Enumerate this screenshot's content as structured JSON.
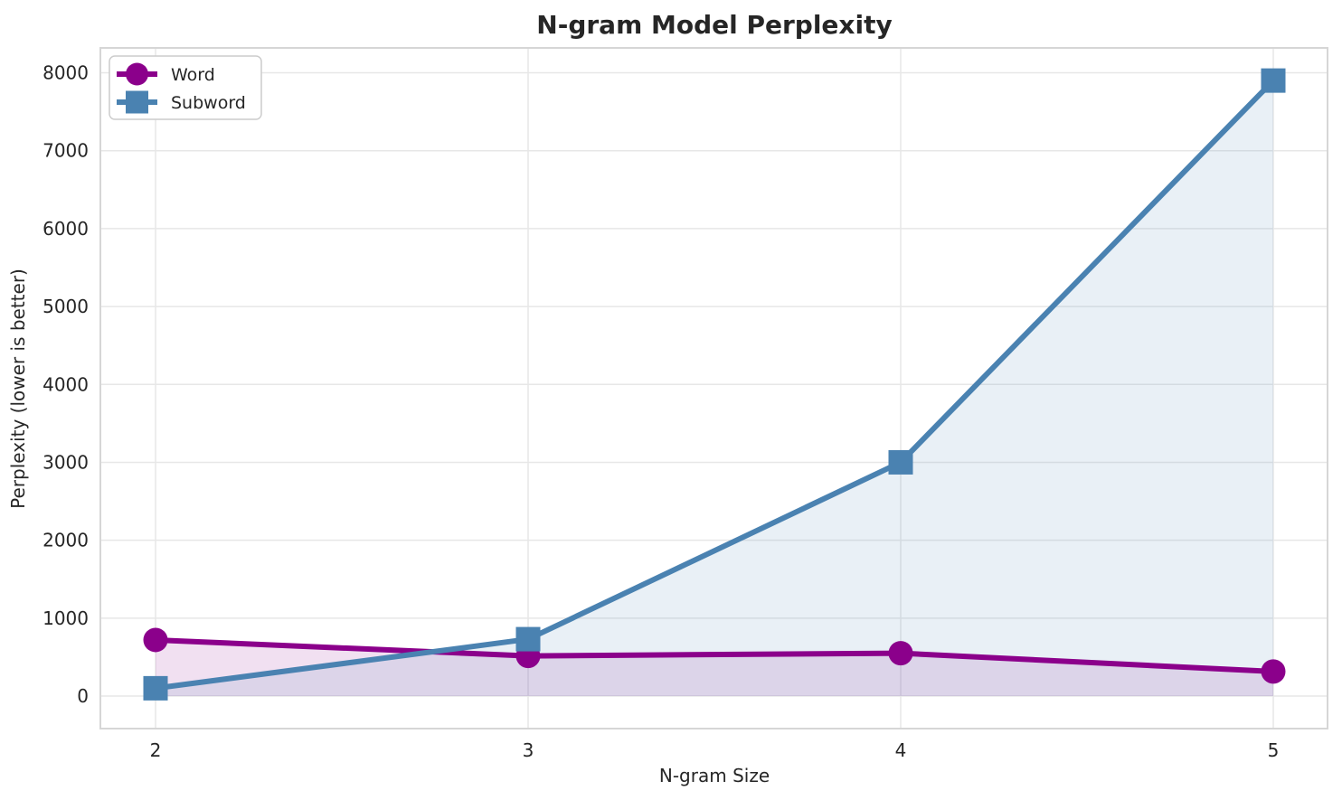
{
  "chart_data": {
    "type": "line",
    "title": "N-gram Model Perplexity",
    "xlabel": "N-gram Size",
    "ylabel": "Perplexity (lower is better)",
    "x": [
      2,
      3,
      4,
      5
    ],
    "xtick_labels": [
      "2",
      "3",
      "4",
      "5"
    ],
    "yticks": [
      0,
      1000,
      2000,
      3000,
      4000,
      5000,
      6000,
      7000,
      8000
    ],
    "ytick_labels": [
      "0",
      "1000",
      "2000",
      "3000",
      "4000",
      "5000",
      "6000",
      "7000",
      "8000"
    ],
    "ylim": [
      0,
      8000
    ],
    "grid": true,
    "legend_position": "upper left",
    "series": [
      {
        "name": "Word",
        "values": [
          720,
          515,
          550,
          315
        ],
        "color": "#8B008B",
        "marker": "circle",
        "fill_to_zero": true,
        "fill_alpha": 0.12
      },
      {
        "name": "Subword",
        "values": [
          100,
          730,
          3000,
          7900
        ],
        "color": "#4A82B1",
        "marker": "square",
        "fill_to_zero": true,
        "fill_alpha": 0.12
      }
    ]
  },
  "style_colors": {
    "grid": "#e7e7e7",
    "spine": "#d6d6d6",
    "legend_border": "#cccccc",
    "text": "#262626"
  }
}
